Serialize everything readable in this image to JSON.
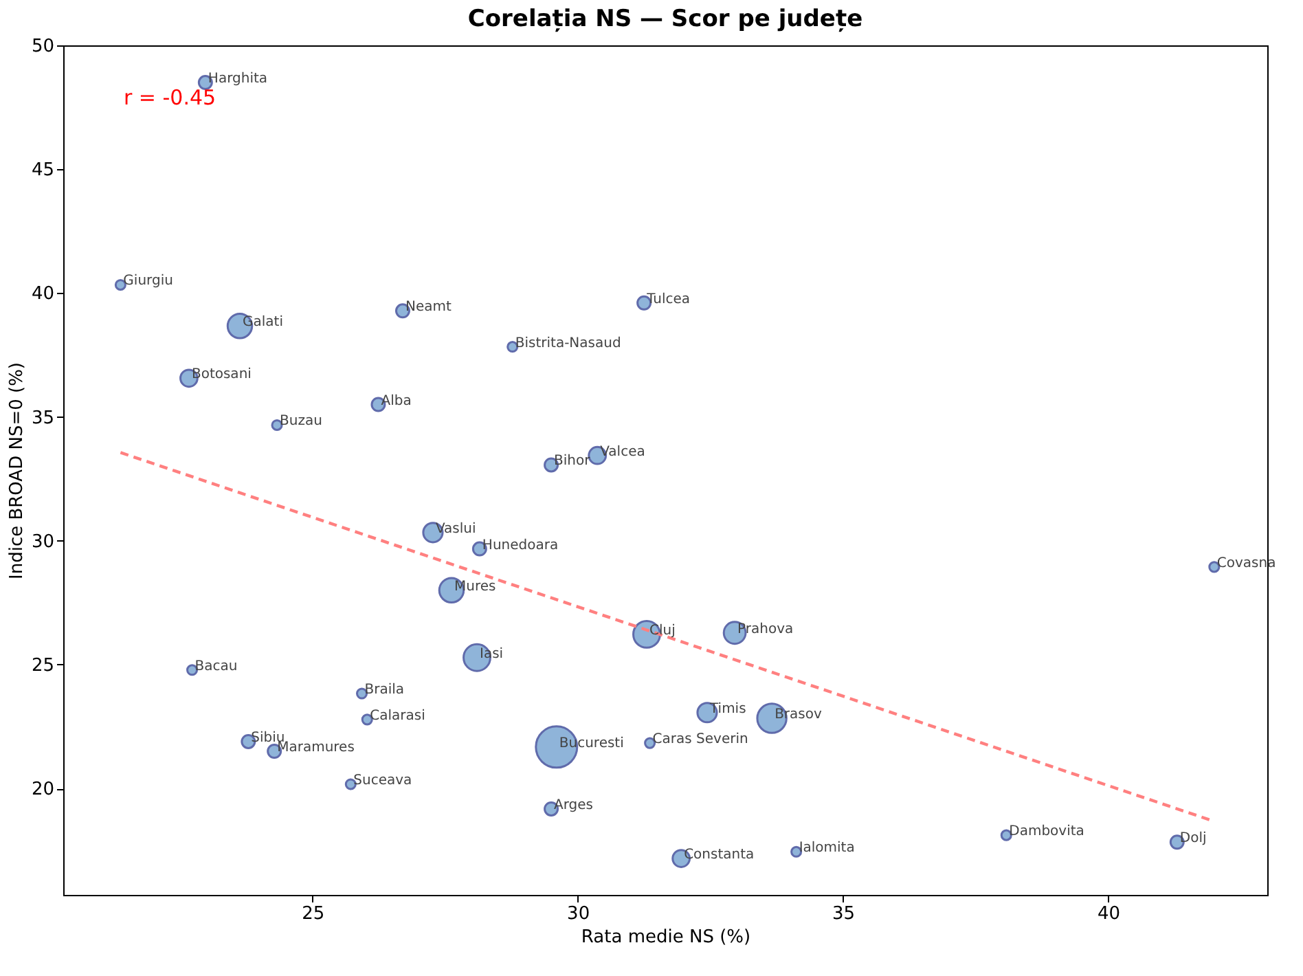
{
  "chart_data": {
    "type": "bubble",
    "title": "Corelația NS — Scor pe județe",
    "xlabel": "Rata medie NS (%)",
    "ylabel": "Indice BROAD NS=0 (%)",
    "xlim": [
      20.3,
      43.0
    ],
    "ylim": [
      15.7,
      50
    ],
    "xticks": [
      25,
      30,
      35,
      40
    ],
    "yticks": [
      20,
      25,
      30,
      35,
      40,
      45,
      50
    ],
    "grid": false,
    "legend": false,
    "series": [
      {
        "color": "#6a9bcd",
        "x": [
          22.98,
          21.38,
          23.63,
          26.7,
          31.25,
          28.77,
          22.67,
          26.24,
          24.33,
          30.37,
          29.5,
          27.27,
          28.15,
          42.0,
          27.62,
          31.3,
          32.96,
          28.1,
          22.73,
          25.93,
          26.03,
          32.44,
          33.66,
          23.79,
          24.28,
          29.6,
          31.36,
          25.72,
          29.5,
          38.08,
          41.3,
          34.12,
          31.95
        ],
        "values": [
          48.5,
          40.33,
          38.67,
          39.28,
          39.6,
          37.83,
          36.56,
          35.5,
          34.67,
          33.44,
          33.06,
          30.33,
          29.67,
          28.94,
          28.0,
          26.22,
          26.28,
          25.28,
          24.78,
          23.83,
          22.78,
          23.06,
          22.83,
          21.89,
          21.5,
          21.67,
          21.83,
          20.17,
          19.17,
          18.11,
          17.83,
          17.44,
          17.17
        ],
        "sizes": [
          0.1,
          0.055,
          0.35,
          0.1,
          0.1,
          0.055,
          0.17,
          0.1,
          0.055,
          0.17,
          0.1,
          0.22,
          0.1,
          0.055,
          0.35,
          0.42,
          0.28,
          0.42,
          0.055,
          0.055,
          0.055,
          0.22,
          0.5,
          0.1,
          0.1,
          1,
          0.055,
          0.055,
          0.1,
          0.055,
          0.1,
          0.055,
          0.17
        ]
      },
      {
        "type": "line",
        "color": "#ff8080",
        "line_style": "dashed",
        "x": [
          21.38,
          42.0
        ],
        "values": [
          33.56,
          18.67
        ]
      }
    ],
    "annotations": [
      {
        "text": "Harghita",
        "x": 22.98,
        "y": 48.5
      },
      {
        "text": "Giurgiu",
        "x": 21.38,
        "y": 40.33
      },
      {
        "text": "Galati",
        "x": 23.63,
        "y": 38.67
      },
      {
        "text": "Neamt",
        "x": 26.7,
        "y": 39.28
      },
      {
        "text": "Tulcea",
        "x": 31.25,
        "y": 39.6
      },
      {
        "text": "Bistrita-Nasaud",
        "x": 28.77,
        "y": 37.83
      },
      {
        "text": "Botosani",
        "x": 22.67,
        "y": 36.56
      },
      {
        "text": "Alba",
        "x": 26.24,
        "y": 35.5
      },
      {
        "text": "Buzau",
        "x": 24.33,
        "y": 34.67
      },
      {
        "text": "Valcea",
        "x": 30.37,
        "y": 33.44
      },
      {
        "text": "Bihor",
        "x": 29.5,
        "y": 33.06
      },
      {
        "text": "Vaslui",
        "x": 27.27,
        "y": 30.33
      },
      {
        "text": "Hunedoara",
        "x": 28.15,
        "y": 29.67
      },
      {
        "text": "Covasna",
        "x": 42.0,
        "y": 28.94
      },
      {
        "text": "Mures",
        "x": 27.62,
        "y": 28.0
      },
      {
        "text": "Cluj",
        "x": 31.3,
        "y": 26.22
      },
      {
        "text": "Prahova",
        "x": 32.96,
        "y": 26.28
      },
      {
        "text": "Iasi",
        "x": 28.1,
        "y": 25.28
      },
      {
        "text": "Bacau",
        "x": 22.73,
        "y": 24.78
      },
      {
        "text": "Braila",
        "x": 25.93,
        "y": 23.83
      },
      {
        "text": "Calarasi",
        "x": 26.03,
        "y": 22.78
      },
      {
        "text": "Timis",
        "x": 32.44,
        "y": 23.06
      },
      {
        "text": "Brasov",
        "x": 33.66,
        "y": 22.83
      },
      {
        "text": "Sibiu",
        "x": 23.79,
        "y": 21.89
      },
      {
        "text": "Maramures",
        "x": 24.28,
        "y": 21.5
      },
      {
        "text": "Bucuresti",
        "x": 29.6,
        "y": 21.67
      },
      {
        "text": "Caras Severin",
        "x": 31.36,
        "y": 21.83
      },
      {
        "text": "Suceava",
        "x": 25.72,
        "y": 20.17
      },
      {
        "text": "Arges",
        "x": 29.5,
        "y": 19.17
      },
      {
        "text": "Dambovita",
        "x": 38.08,
        "y": 18.11
      },
      {
        "text": "Dolj",
        "x": 41.3,
        "y": 17.83
      },
      {
        "text": "Ialomita",
        "x": 34.12,
        "y": 17.44
      },
      {
        "text": "Constanta",
        "x": 31.95,
        "y": 17.17
      },
      "r = -0.45"
    ]
  }
}
